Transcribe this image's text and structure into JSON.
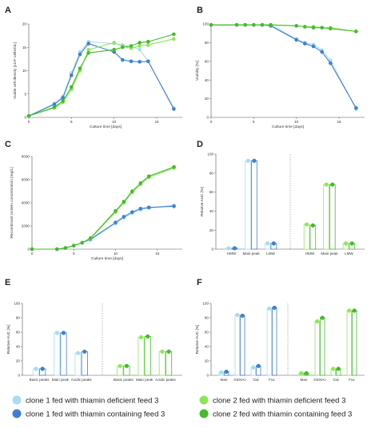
{
  "colors": {
    "c1_def": "#a8dcf0",
    "c1_con": "#3f7fd0",
    "c2_def": "#8fe65a",
    "c2_con": "#44bb2a",
    "axis": "#555555"
  },
  "legend": {
    "items": [
      {
        "key": "c1_def",
        "label": "clone 1 fed with thiamin deficient feed 3"
      },
      {
        "key": "c2_def",
        "label": "clone 2 fed with thiamin deficient feed 3"
      },
      {
        "key": "c1_con",
        "label": "clone 1 fed with thiamin containing feed 3"
      },
      {
        "key": "c2_con",
        "label": "clone 2 fed with thiamin containing feed 3"
      }
    ]
  },
  "chart_data": [
    {
      "panel": "A",
      "type": "line",
      "xlabel": "Culture time [days]",
      "ylabel": "Viable cell density [x10⁶ cells/mL]",
      "xlim": [
        0,
        18
      ],
      "ylim": [
        0,
        20
      ],
      "xticks": [
        0,
        5,
        10,
        15
      ],
      "yticks": [
        0,
        5,
        10,
        15,
        20
      ],
      "x": [
        0,
        3,
        4,
        5,
        6,
        7,
        10,
        11,
        12,
        13,
        14,
        17
      ],
      "series": [
        {
          "key": "c1_def",
          "values": [
            0.3,
            3.0,
            4.5,
            9.5,
            14.0,
            16.2,
            15.8,
            15.5,
            15.2,
            14.5,
            12.0,
            2.0
          ]
        },
        {
          "key": "c1_con",
          "values": [
            0.3,
            2.8,
            4.2,
            9.0,
            13.5,
            15.8,
            14.0,
            12.3,
            12.0,
            11.9,
            12.0,
            1.8
          ]
        },
        {
          "key": "c2_def",
          "values": [
            0.3,
            2.0,
            3.2,
            6.0,
            10.0,
            14.5,
            16.0,
            15.2,
            14.8,
            15.3,
            15.5,
            16.8
          ]
        },
        {
          "key": "c2_con",
          "values": [
            0.3,
            2.2,
            3.5,
            6.5,
            10.5,
            13.8,
            14.5,
            15.0,
            15.3,
            16.0,
            16.2,
            17.8
          ]
        }
      ]
    },
    {
      "panel": "B",
      "type": "line",
      "xlabel": "Culture time [days]",
      "ylabel": "Viability [%]",
      "xlim": [
        0,
        18
      ],
      "ylim": [
        0,
        100
      ],
      "xticks": [
        0,
        5,
        10,
        15
      ],
      "yticks": [
        0,
        20,
        40,
        60,
        80,
        100
      ],
      "x": [
        0,
        3,
        4,
        5,
        6,
        7,
        10,
        11,
        12,
        13,
        14,
        17
      ],
      "series": [
        {
          "key": "c1_def",
          "values": [
            99,
            99,
            99,
            99,
            99,
            99,
            84,
            80,
            78,
            72,
            61,
            9
          ]
        },
        {
          "key": "c1_con",
          "values": [
            99,
            99,
            99,
            99,
            99,
            98,
            83,
            79,
            76,
            70,
            58,
            10
          ]
        },
        {
          "key": "c2_def",
          "values": [
            99,
            99,
            99,
            99,
            99,
            99,
            98,
            97,
            97,
            96,
            96,
            92
          ]
        },
        {
          "key": "c2_con",
          "values": [
            99,
            99,
            99,
            99,
            99,
            99,
            98,
            97,
            96,
            96,
            95,
            92
          ]
        }
      ]
    },
    {
      "panel": "C",
      "type": "line",
      "xlabel": "Culture time [days]",
      "ylabel": "Recombinant protein concentration [mg/L]",
      "xlim": [
        0,
        18
      ],
      "ylim": [
        0,
        8000
      ],
      "xticks": [
        0,
        5,
        10,
        15
      ],
      "yticks": [
        0,
        2000,
        4000,
        6000,
        8000
      ],
      "x": [
        0,
        3,
        4,
        5,
        6,
        7,
        10,
        11,
        12,
        13,
        14,
        17
      ],
      "series": [
        {
          "key": "c1_def",
          "values": [
            0,
            0,
            100,
            300,
            550,
            800,
            2200,
            2700,
            3100,
            3400,
            3550,
            3800
          ]
        },
        {
          "key": "c1_con",
          "values": [
            0,
            0,
            100,
            300,
            550,
            850,
            2300,
            2800,
            3200,
            3500,
            3600,
            3700
          ]
        },
        {
          "key": "c2_def",
          "values": [
            0,
            0,
            100,
            300,
            550,
            900,
            3200,
            4000,
            4900,
            5600,
            6200,
            7000
          ]
        },
        {
          "key": "c2_con",
          "values": [
            0,
            0,
            100,
            300,
            550,
            950,
            3300,
            4100,
            5000,
            5700,
            6300,
            7100
          ]
        }
      ]
    },
    {
      "panel": "D",
      "type": "bar",
      "ylabel": "Relative AUC [%]",
      "ylim": [
        0,
        100
      ],
      "yticks": [
        0,
        20,
        40,
        60,
        80,
        100
      ],
      "groups": [
        {
          "keys": [
            "c1_def",
            "c1_con"
          ],
          "categories": [
            "HMW",
            "Main peak",
            "LMW"
          ],
          "values": [
            [
              1,
              1
            ],
            [
              93,
              93
            ],
            [
              6,
              6
            ]
          ]
        },
        {
          "keys": [
            "c2_def",
            "c2_con"
          ],
          "categories": [
            "HMW",
            "Main peak",
            "LMW"
          ],
          "values": [
            [
              26,
              25
            ],
            [
              68,
              68
            ],
            [
              6,
              6
            ]
          ]
        }
      ]
    },
    {
      "panel": "E",
      "type": "bar",
      "ylabel": "Relative AUC [%]",
      "ylim": [
        0,
        100
      ],
      "yticks": [
        0,
        20,
        40,
        60,
        80,
        100
      ],
      "groups": [
        {
          "keys": [
            "c1_def",
            "c1_con"
          ],
          "categories": [
            "Basic peaks",
            "Main peak",
            "Acidic peaks"
          ],
          "values": [
            [
              9,
              9
            ],
            [
              59,
              59
            ],
            [
              31,
              33
            ]
          ]
        },
        {
          "keys": [
            "c2_def",
            "c2_con"
          ],
          "categories": [
            "Basic peaks",
            "Main peak",
            "Acidic peaks"
          ],
          "values": [
            [
              13,
              13
            ],
            [
              53,
              54
            ],
            [
              33,
              33
            ]
          ]
        }
      ]
    },
    {
      "panel": "F",
      "type": "bar",
      "ylabel": "Relative AUC [%]",
      "ylim": [
        0,
        100
      ],
      "yticks": [
        0,
        20,
        40,
        60,
        80,
        100
      ],
      "groups": [
        {
          "keys": [
            "c1_def",
            "c1_con"
          ],
          "categories": [
            "Man",
            "GlcNAc",
            "Gal",
            "Fuc"
          ],
          "values": [
            [
              4,
              5
            ],
            [
              84,
              83
            ],
            [
              11,
              13
            ],
            [
              93,
              94
            ]
          ]
        },
        {
          "keys": [
            "c2_def",
            "c2_con"
          ],
          "categories": [
            "Man",
            "GlcNAc",
            "Gal",
            "Fuc"
          ],
          "values": [
            [
              3,
              3
            ],
            [
              75,
              80
            ],
            [
              9,
              9
            ],
            [
              90,
              90
            ]
          ]
        }
      ]
    }
  ]
}
